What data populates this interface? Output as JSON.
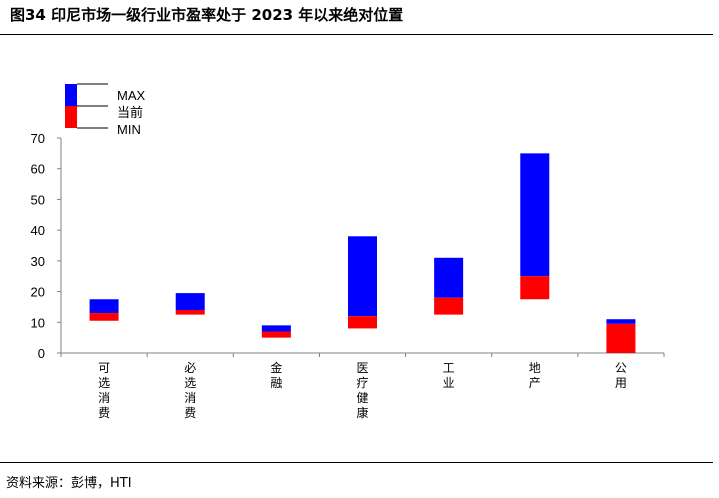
{
  "title": "图34 印尼市场一级行业市盈率处于 2023 年以来绝对位置",
  "source": "资料来源：彭博，HTI",
  "legend": {
    "max": "MAX",
    "current": "当前",
    "min": "MIN"
  },
  "colors": {
    "upper": "#0000ff",
    "lower": "#ff0000",
    "axis": "#808080"
  },
  "chart_data": {
    "type": "bar",
    "subtype": "floating-range",
    "categories": [
      "可选消费",
      "必选消费",
      "金融",
      "医疗健康",
      "工业",
      "地产",
      "公用"
    ],
    "series": [
      {
        "name": "MAX",
        "values": [
          17.5,
          19.5,
          9,
          38,
          31,
          65,
          11
        ]
      },
      {
        "name": "当前",
        "values": [
          13,
          14,
          7,
          12,
          18,
          25,
          9.5
        ]
      },
      {
        "name": "MIN",
        "values": [
          10.5,
          12.5,
          5,
          8,
          12.5,
          17.5,
          0
        ]
      }
    ],
    "ylim": [
      0,
      70
    ],
    "yticks": [
      0,
      10,
      20,
      30,
      40,
      50,
      60,
      70
    ],
    "grid": false,
    "legend_position": "top-left"
  }
}
